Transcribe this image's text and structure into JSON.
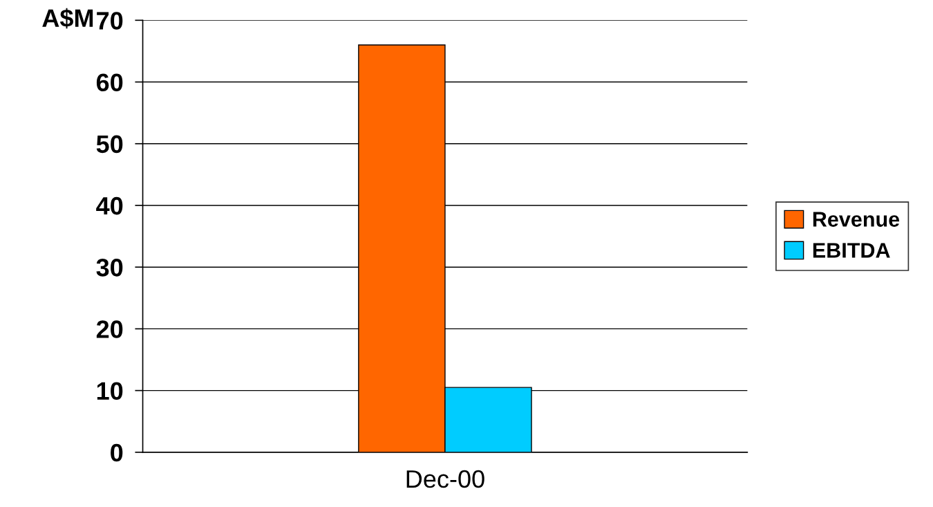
{
  "chart_data": {
    "type": "bar",
    "ylabel": "A$M",
    "categories": [
      "Dec-00"
    ],
    "series": [
      {
        "name": "Revenue",
        "color": "#ff6600",
        "values": [
          66
        ]
      },
      {
        "name": "EBITDA",
        "color": "#00ccff",
        "values": [
          10.5
        ]
      }
    ],
    "ylim": [
      0,
      70
    ],
    "yticks": [
      0,
      10,
      20,
      30,
      40,
      50,
      60,
      70
    ],
    "grid": "y",
    "legend": "right"
  }
}
